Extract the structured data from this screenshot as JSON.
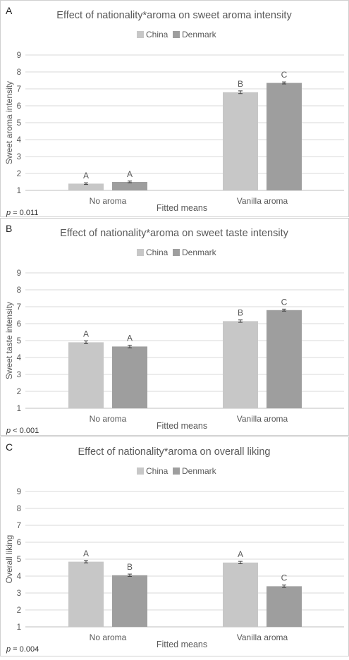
{
  "colors": {
    "china": "#c7c7c7",
    "denmark": "#9e9e9e",
    "grid": "#d9d9d9",
    "axis": "#bfbfbf",
    "text": "#595959",
    "error_bar": "#404040",
    "panel_border": "#d0d0d0"
  },
  "legend": {
    "china": "China",
    "denmark": "Denmark"
  },
  "chart_data": [
    {
      "type": "bar",
      "panel_label": "A",
      "title": "Effect of nationality*aroma on sweet aroma intensity",
      "xlabel": "Fitted means",
      "ylabel": "Sweet aroma intensity",
      "ylim": [
        1,
        9
      ],
      "yticks": [
        "1",
        "2",
        "3",
        "4",
        "5",
        "6",
        "7",
        "8",
        "9"
      ],
      "grid": true,
      "legend_position": "top",
      "p_prefix": "p",
      "p_text": " = 0.011",
      "categories": [
        "No aroma",
        "Vanilla aroma"
      ],
      "series": [
        {
          "name": "China",
          "values": [
            1.4,
            6.8
          ],
          "errors": [
            0.05,
            0.08
          ],
          "letters": [
            "A",
            "B"
          ]
        },
        {
          "name": "Denmark",
          "values": [
            1.5,
            7.35
          ],
          "errors": [
            0.05,
            0.06
          ],
          "letters": [
            "A",
            "C"
          ]
        }
      ]
    },
    {
      "type": "bar",
      "panel_label": "B",
      "title": "Effect of nationality*aroma on sweet taste intensity",
      "xlabel": "Fitted means",
      "ylabel": "Sweet taste intensity",
      "ylim": [
        1,
        9
      ],
      "yticks": [
        "1",
        "2",
        "3",
        "4",
        "5",
        "6",
        "7",
        "8",
        "9"
      ],
      "grid": true,
      "legend_position": "top",
      "p_prefix": "p",
      "p_text": " < 0.001",
      "categories": [
        "No aroma",
        "Vanilla aroma"
      ],
      "series": [
        {
          "name": "China",
          "values": [
            4.9,
            6.15
          ],
          "errors": [
            0.08,
            0.07
          ],
          "letters": [
            "A",
            "B"
          ]
        },
        {
          "name": "Denmark",
          "values": [
            4.65,
            6.8
          ],
          "errors": [
            0.08,
            0.06
          ],
          "letters": [
            "A",
            "C"
          ]
        }
      ]
    },
    {
      "type": "bar",
      "panel_label": "C",
      "title": "Effect of nationality*aroma on overall liking",
      "xlabel": "Fitted means",
      "ylabel": "Overall liking",
      "ylim": [
        1,
        9
      ],
      "yticks": [
        "1",
        "2",
        "3",
        "4",
        "5",
        "6",
        "7",
        "8",
        "9"
      ],
      "grid": true,
      "legend_position": "top",
      "p_prefix": "p",
      "p_text": " = 0.004",
      "categories": [
        "No aroma",
        "Vanilla aroma"
      ],
      "series": [
        {
          "name": "China",
          "values": [
            4.85,
            4.8
          ],
          "errors": [
            0.07,
            0.07
          ],
          "letters": [
            "A",
            "A"
          ]
        },
        {
          "name": "Denmark",
          "values": [
            4.05,
            3.4
          ],
          "errors": [
            0.07,
            0.07
          ],
          "letters": [
            "B",
            "C"
          ]
        }
      ]
    }
  ]
}
